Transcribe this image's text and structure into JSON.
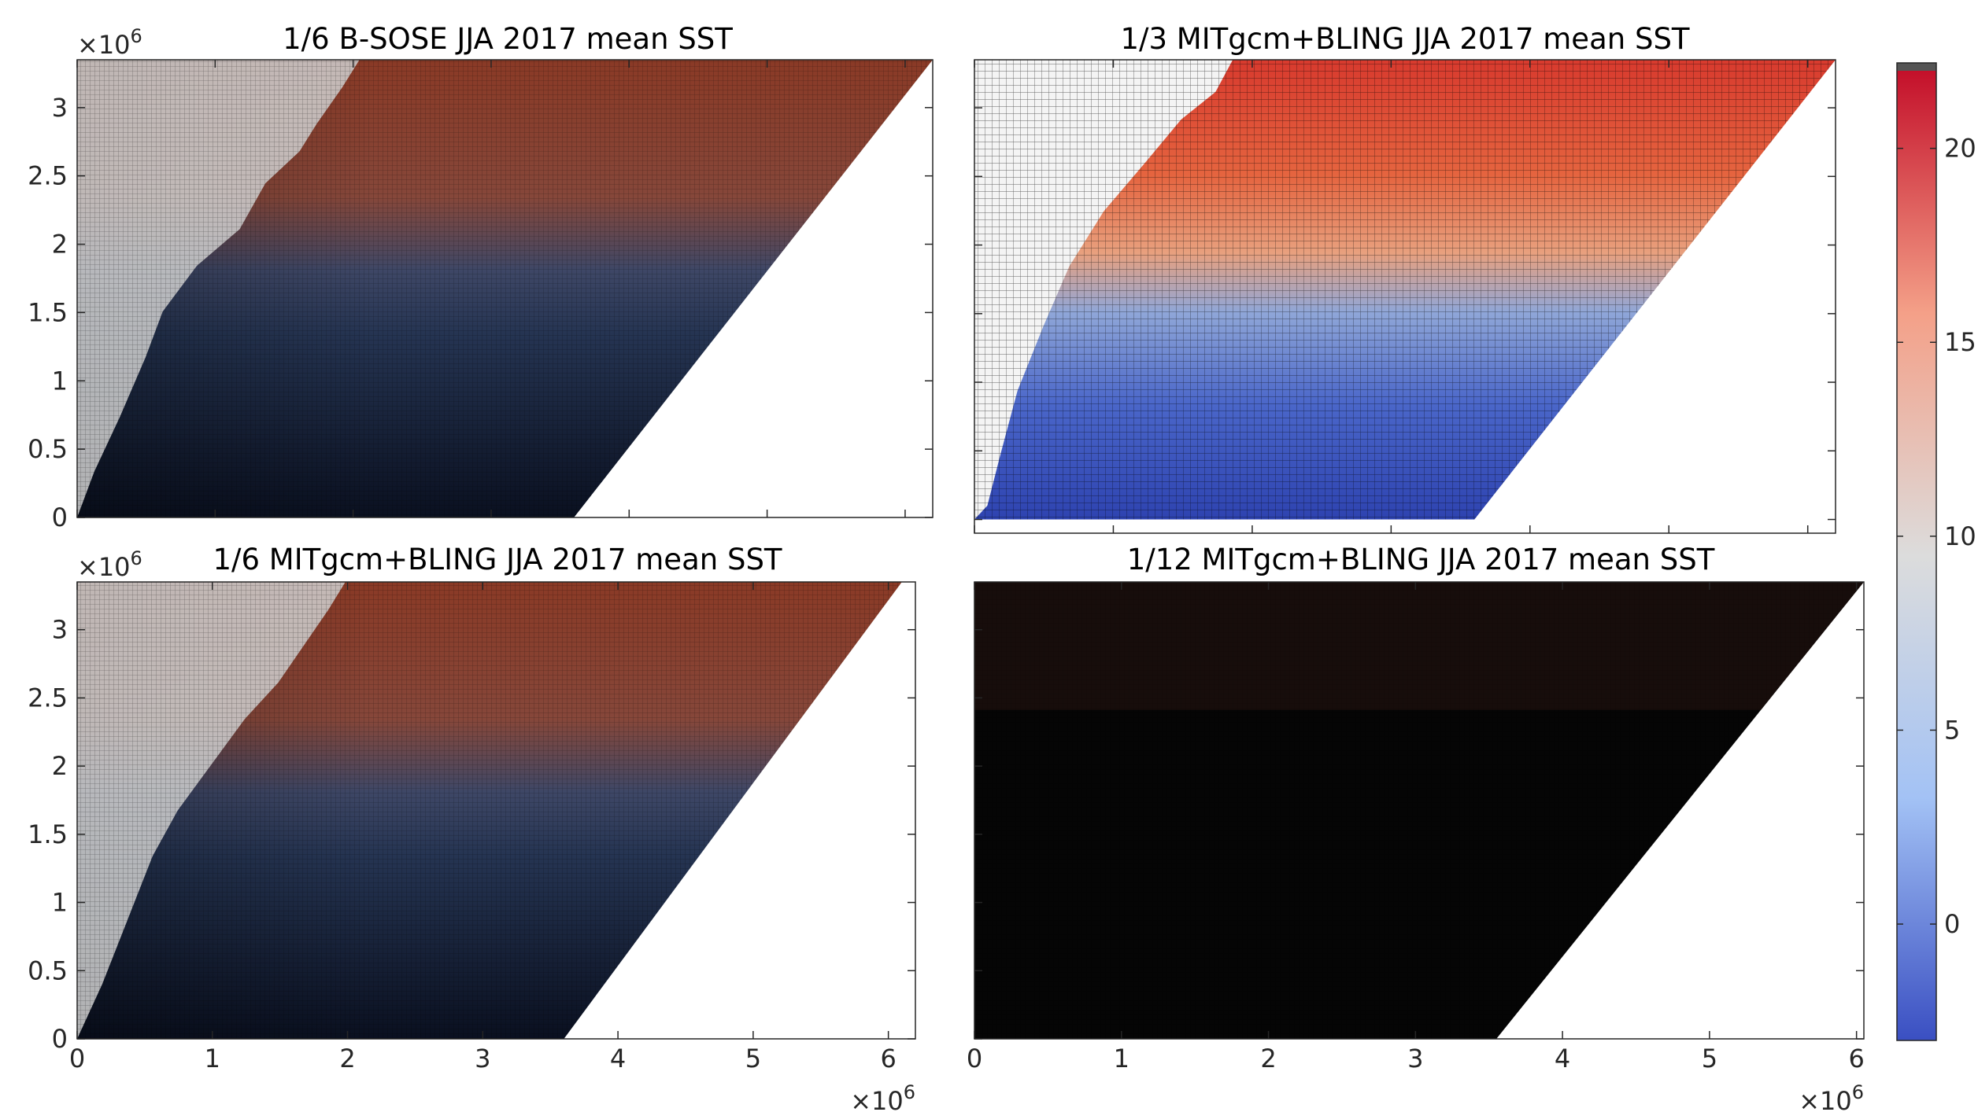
{
  "chart_data": [
    {
      "type": "heatmap",
      "title": "1/6 B-SOSE JJA 2017 mean SST",
      "xlim": [
        0,
        6200000
      ],
      "ylim": [
        0,
        3350000
      ],
      "xticks": [
        "0",
        "1",
        "2",
        "3",
        "4",
        "5",
        "6"
      ],
      "yticks": [
        "0",
        "0.5",
        "1",
        "1.5",
        "2",
        "2.5",
        "3"
      ],
      "x_tick_labels_shown": false,
      "y_tick_labels_shown": true,
      "x_exponent": "",
      "y_exponent": "×10^6",
      "grid_overlay": true,
      "brightness": "dark",
      "domain_boundary_x_at_y0": 3600000,
      "domain_boundary_x_at_ytop": 6200000
    },
    {
      "type": "heatmap",
      "title": "1/3 MITgcm+BLING JJA 2017 mean SST",
      "xlim": [
        0,
        6200000
      ],
      "ylim": [
        -100000,
        3350000
      ],
      "xticks": [
        "0",
        "1",
        "2",
        "3",
        "4",
        "5",
        "6"
      ],
      "yticks": [
        "0",
        "0.5",
        "1",
        "1.5",
        "2",
        "2.5",
        "3"
      ],
      "x_tick_labels_shown": false,
      "y_tick_labels_shown": false,
      "x_exponent": "",
      "y_exponent": "",
      "grid_overlay": true,
      "brightness": "bright",
      "domain_boundary_x_at_y0": 3600000,
      "domain_boundary_x_at_ytop": 6200000
    },
    {
      "type": "heatmap",
      "title": "1/6 MITgcm+BLING JJA 2017 mean SST",
      "xlim": [
        0,
        6200000
      ],
      "ylim": [
        0,
        3350000
      ],
      "xticks": [
        "0",
        "1",
        "2",
        "3",
        "4",
        "5",
        "6"
      ],
      "yticks": [
        "0",
        "0.5",
        "1",
        "1.5",
        "2",
        "2.5",
        "3"
      ],
      "x_tick_labels_shown": true,
      "y_tick_labels_shown": true,
      "x_exponent": "×10^6",
      "y_exponent": "×10^6",
      "grid_overlay": true,
      "brightness": "dark",
      "domain_boundary_x_at_y0": 3600000,
      "domain_boundary_x_at_ytop": 6100000
    },
    {
      "type": "heatmap",
      "title": "1/12 MITgcm+BLING JJA 2017 mean SST",
      "xlim": [
        0,
        6050000
      ],
      "ylim": [
        0,
        3350000
      ],
      "xticks": [
        "0",
        "1",
        "2",
        "3",
        "4",
        "5",
        "6"
      ],
      "yticks": [
        "0",
        "0.5",
        "1",
        "1.5",
        "2",
        "2.5",
        "3"
      ],
      "x_tick_labels_shown": true,
      "y_tick_labels_shown": false,
      "x_exponent": "×10^6",
      "y_exponent": "",
      "grid_overlay": true,
      "brightness": "black",
      "domain_boundary_x_at_y0": 3550000,
      "domain_boundary_x_at_ytop": 6050000
    }
  ],
  "colorbar": {
    "clim": [
      -3,
      22
    ],
    "ticks": [
      "0",
      "5",
      "10",
      "15",
      "20"
    ],
    "tick_values": [
      0,
      5,
      10,
      15,
      20
    ],
    "colors": [
      "#3a4fc2",
      "#a3c2f5",
      "#dcdcdc",
      "#f4a088",
      "#c4102a"
    ],
    "top_cap_color": "#555555"
  }
}
